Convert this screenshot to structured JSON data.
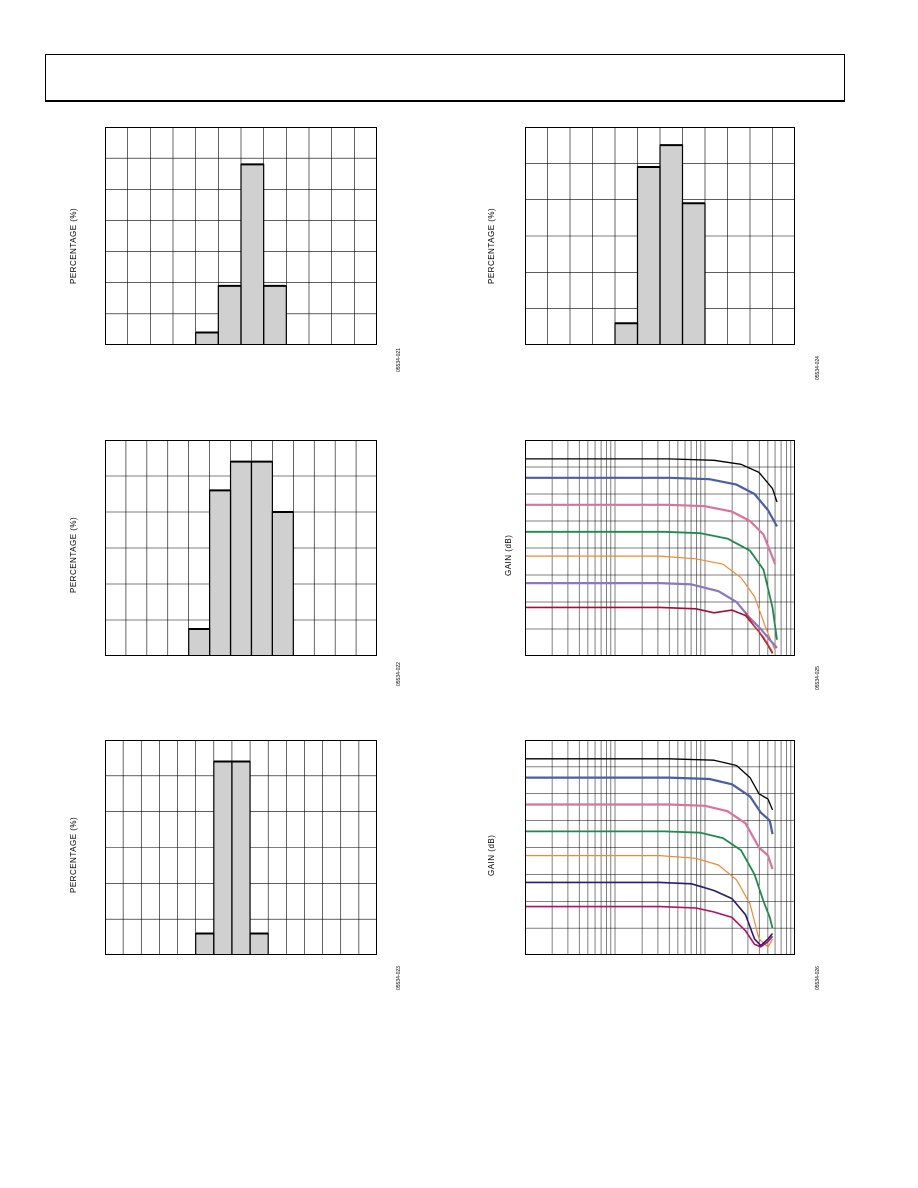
{
  "page": {
    "header_text": ""
  },
  "chart_data": [
    {
      "type": "bar",
      "id": "hist1",
      "ylabel": "PERCENTAGE (%)",
      "figure_number": "05534-021",
      "x_bins": 12,
      "y_divisions": 7,
      "bins": [
        {
          "bin": 4,
          "value": 0.4
        },
        {
          "bin": 5,
          "value": 1.9
        },
        {
          "bin": 6,
          "value": 5.8
        },
        {
          "bin": 7,
          "value": 1.9
        }
      ],
      "ylim": [
        0,
        7
      ],
      "grid": true
    },
    {
      "type": "bar",
      "id": "hist2",
      "ylabel": "PERCENTAGE (%)",
      "figure_number": "05534-024",
      "x_bins": 12,
      "y_divisions": 6,
      "bins": [
        {
          "bin": 4,
          "value": 0.6
        },
        {
          "bin": 5,
          "value": 4.9
        },
        {
          "bin": 6,
          "value": 5.5
        },
        {
          "bin": 7,
          "value": 3.9
        }
      ],
      "ylim": [
        0,
        6
      ],
      "grid": true
    },
    {
      "type": "bar",
      "id": "hist3",
      "ylabel": "PERCENTAGE (%)",
      "figure_number": "05534-022",
      "x_bins": 13,
      "y_divisions": 6,
      "bins": [
        {
          "bin": 4,
          "value": 0.75
        },
        {
          "bin": 5,
          "value": 4.6
        },
        {
          "bin": 6,
          "value": 5.4
        },
        {
          "bin": 7,
          "value": 5.4
        },
        {
          "bin": 8,
          "value": 4.0
        }
      ],
      "ylim": [
        0,
        6
      ],
      "grid": true
    },
    {
      "type": "line",
      "id": "gain1",
      "ylabel": "GAIN (dB)",
      "figure_number": "05534-025",
      "x_scale": "log",
      "x_decades": 3,
      "y_divisions": 8,
      "grid": true,
      "series": [
        {
          "color": "#000000",
          "width": 1.3,
          "points": [
            [
              0,
              7.3
            ],
            [
              1.6,
              7.3
            ],
            [
              2.1,
              7.25
            ],
            [
              2.4,
              7.1
            ],
            [
              2.6,
              6.8
            ],
            [
              2.75,
              6.2
            ],
            [
              2.8,
              5.7
            ]
          ]
        },
        {
          "color": "#4a5ea3",
          "width": 2.2,
          "points": [
            [
              0,
              6.6
            ],
            [
              1.6,
              6.6
            ],
            [
              2.05,
              6.55
            ],
            [
              2.35,
              6.35
            ],
            [
              2.55,
              6.0
            ],
            [
              2.7,
              5.4
            ],
            [
              2.8,
              4.8
            ]
          ]
        },
        {
          "color": "#d9729d",
          "width": 2.2,
          "points": [
            [
              0,
              5.6
            ],
            [
              1.6,
              5.6
            ],
            [
              2.0,
              5.55
            ],
            [
              2.3,
              5.35
            ],
            [
              2.5,
              5.0
            ],
            [
              2.65,
              4.5
            ],
            [
              2.78,
              3.4
            ]
          ]
        },
        {
          "color": "#1f8a4c",
          "width": 1.8,
          "points": [
            [
              0,
              4.6
            ],
            [
              1.55,
              4.6
            ],
            [
              1.95,
              4.55
            ],
            [
              2.25,
              4.35
            ],
            [
              2.5,
              3.9
            ],
            [
              2.65,
              3.2
            ],
            [
              2.75,
              1.8
            ],
            [
              2.8,
              0.6
            ]
          ]
        },
        {
          "color": "#f08a30",
          "width": 1.2,
          "points": [
            [
              0,
              3.7
            ],
            [
              1.5,
              3.7
            ],
            [
              1.9,
              3.6
            ],
            [
              2.2,
              3.4
            ],
            [
              2.4,
              2.9
            ],
            [
              2.55,
              2.2
            ],
            [
              2.68,
              1.0
            ],
            [
              2.78,
              0.2
            ]
          ]
        },
        {
          "color": "#8a78c0",
          "width": 2.2,
          "points": [
            [
              0,
              2.7
            ],
            [
              1.5,
              2.7
            ],
            [
              1.85,
              2.65
            ],
            [
              2.15,
              2.4
            ],
            [
              2.35,
              2.0
            ],
            [
              2.5,
              1.4
            ],
            [
              2.62,
              1.0
            ],
            [
              2.72,
              0.6
            ],
            [
              2.8,
              0.3
            ]
          ]
        },
        {
          "color": "#a0103a",
          "width": 1.6,
          "points": [
            [
              0,
              1.8
            ],
            [
              1.5,
              1.8
            ],
            [
              1.9,
              1.75
            ],
            [
              2.1,
              1.6
            ],
            [
              2.3,
              1.7
            ],
            [
              2.45,
              1.5
            ],
            [
              2.6,
              0.9
            ],
            [
              2.7,
              0.4
            ],
            [
              2.75,
              0.1
            ]
          ]
        },
        {
          "color": "#e03020",
          "width": 1.2,
          "points": [
            [
              2.45,
              1.6
            ],
            [
              2.55,
              1.1
            ],
            [
              2.65,
              0.7
            ],
            [
              2.75,
              0.15
            ]
          ]
        }
      ]
    },
    {
      "type": "bar",
      "id": "hist4",
      "ylabel": "PERCENTAGE (%)",
      "figure_number": "05534-023",
      "x_bins": 15,
      "y_divisions": 6,
      "bins": [
        {
          "bin": 5,
          "value": 0.6
        },
        {
          "bin": 6,
          "value": 5.4
        },
        {
          "bin": 7,
          "value": 5.4
        },
        {
          "bin": 8,
          "value": 0.6
        }
      ],
      "ylim": [
        0,
        6
      ],
      "grid": true
    },
    {
      "type": "line",
      "id": "gain2",
      "ylabel": "GAIN (dB)",
      "figure_number": "05534-026",
      "x_scale": "log",
      "x_decades": 3,
      "y_divisions": 8,
      "grid": true,
      "series": [
        {
          "color": "#000000",
          "width": 1.3,
          "points": [
            [
              0,
              7.3
            ],
            [
              1.6,
              7.3
            ],
            [
              2.1,
              7.25
            ],
            [
              2.35,
              7.05
            ],
            [
              2.5,
              6.6
            ],
            [
              2.6,
              6.0
            ],
            [
              2.7,
              5.8
            ],
            [
              2.75,
              5.4
            ]
          ]
        },
        {
          "color": "#4a5ea3",
          "width": 2.2,
          "points": [
            [
              0,
              6.6
            ],
            [
              1.6,
              6.6
            ],
            [
              2.05,
              6.55
            ],
            [
              2.3,
              6.35
            ],
            [
              2.5,
              5.9
            ],
            [
              2.62,
              5.3
            ],
            [
              2.72,
              5.0
            ],
            [
              2.75,
              4.5
            ]
          ]
        },
        {
          "color": "#d9729d",
          "width": 2.2,
          "points": [
            [
              0,
              5.6
            ],
            [
              1.6,
              5.6
            ],
            [
              2.0,
              5.55
            ],
            [
              2.25,
              5.35
            ],
            [
              2.45,
              4.9
            ],
            [
              2.6,
              4.0
            ],
            [
              2.7,
              3.7
            ],
            [
              2.75,
              3.2
            ]
          ]
        },
        {
          "color": "#1f8a4c",
          "width": 1.8,
          "points": [
            [
              0,
              4.6
            ],
            [
              1.55,
              4.6
            ],
            [
              1.95,
              4.55
            ],
            [
              2.2,
              4.35
            ],
            [
              2.4,
              3.9
            ],
            [
              2.55,
              3.0
            ],
            [
              2.65,
              2.0
            ],
            [
              2.72,
              1.4
            ],
            [
              2.75,
              1.0
            ]
          ]
        },
        {
          "color": "#f08a30",
          "width": 1.2,
          "points": [
            [
              0,
              3.7
            ],
            [
              1.5,
              3.7
            ],
            [
              1.9,
              3.6
            ],
            [
              2.15,
              3.35
            ],
            [
              2.35,
              2.8
            ],
            [
              2.5,
              1.9
            ],
            [
              2.6,
              0.6
            ],
            [
              2.7,
              0.3
            ],
            [
              2.75,
              0.6
            ]
          ]
        },
        {
          "color": "#2a1a7a",
          "width": 1.6,
          "points": [
            [
              0,
              2.7
            ],
            [
              1.5,
              2.7
            ],
            [
              1.85,
              2.65
            ],
            [
              2.1,
              2.4
            ],
            [
              2.3,
              2.1
            ],
            [
              2.45,
              1.5
            ],
            [
              2.55,
              0.6
            ],
            [
              2.62,
              0.35
            ],
            [
              2.7,
              0.6
            ],
            [
              2.75,
              0.8
            ]
          ]
        },
        {
          "color": "#b01060",
          "width": 1.6,
          "points": [
            [
              0,
              1.8
            ],
            [
              1.5,
              1.8
            ],
            [
              1.9,
              1.75
            ],
            [
              2.1,
              1.6
            ],
            [
              2.3,
              1.4
            ],
            [
              2.45,
              0.9
            ],
            [
              2.55,
              0.4
            ],
            [
              2.62,
              0.3
            ],
            [
              2.7,
              0.5
            ],
            [
              2.75,
              0.7
            ]
          ]
        }
      ]
    }
  ]
}
